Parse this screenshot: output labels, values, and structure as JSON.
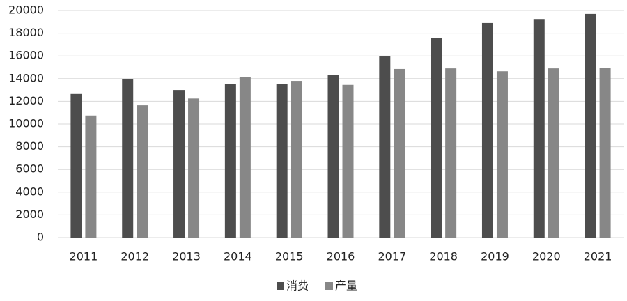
{
  "chart_data": {
    "type": "bar",
    "categories": [
      "2011",
      "2012",
      "2013",
      "2014",
      "2015",
      "2016",
      "2017",
      "2018",
      "2019",
      "2020",
      "2021"
    ],
    "series": [
      {
        "name": "消费",
        "color": "#4d4d4d",
        "values": [
          12650,
          13950,
          13000,
          13500,
          13550,
          14350,
          15950,
          17600,
          18900,
          19250,
          19700
        ]
      },
      {
        "name": "产量",
        "color": "#878787",
        "values": [
          10750,
          11650,
          12250,
          14150,
          13800,
          13450,
          14850,
          14900,
          14650,
          14900,
          14950
        ]
      }
    ],
    "ylim": [
      0,
      20000
    ],
    "yticks": [
      0,
      2000,
      4000,
      6000,
      8000,
      10000,
      12000,
      14000,
      16000,
      18000,
      20000
    ],
    "grid": true,
    "legend": "bottom"
  }
}
